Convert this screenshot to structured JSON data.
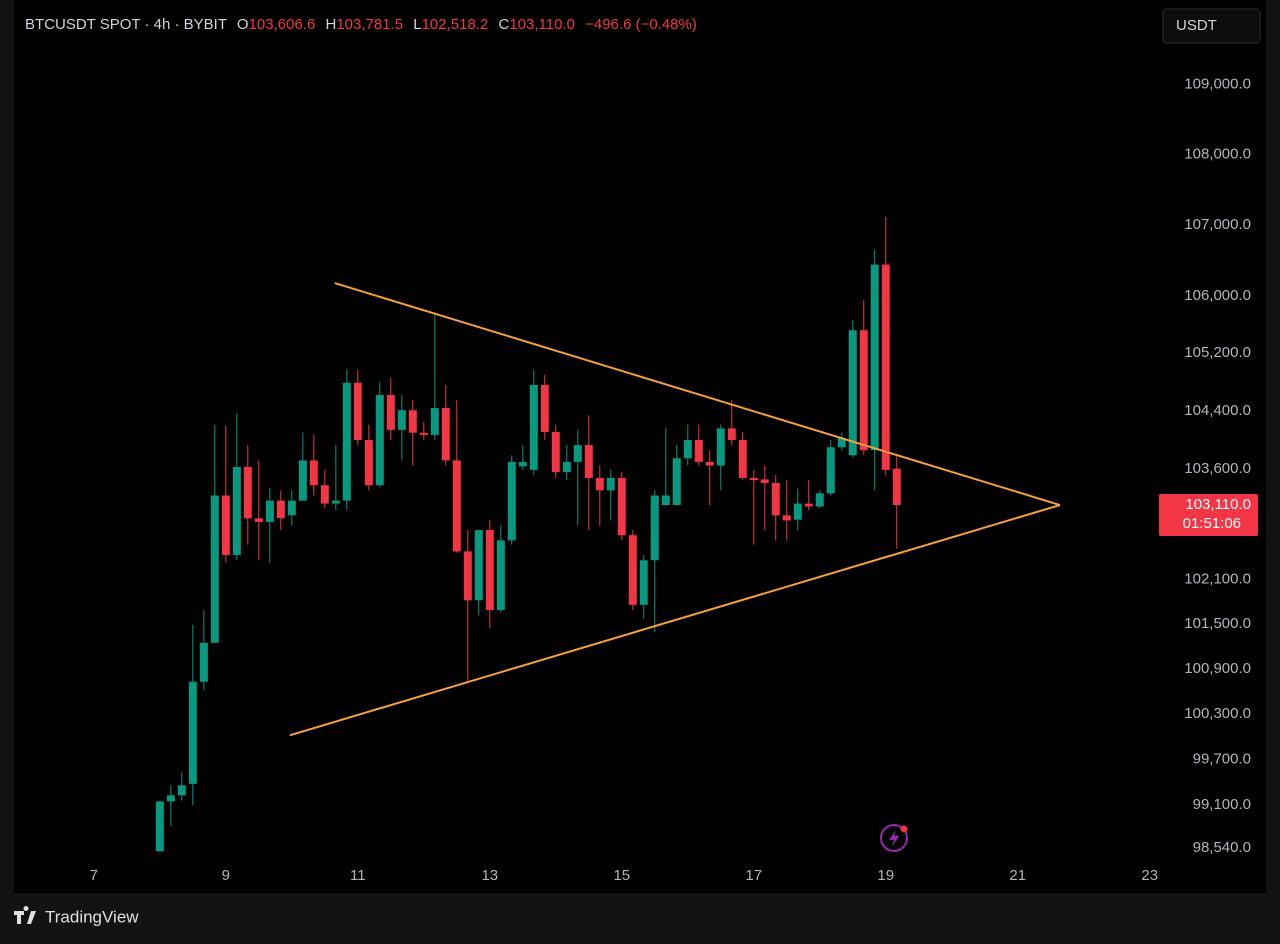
{
  "chart_data": {
    "type": "candlestick",
    "header": {
      "symbol": "BTCUSDT SPOT · 4h · BYBIT",
      "open_label": "O",
      "open": "103,606.6",
      "high_label": "H",
      "high": "103,781.5",
      "low_label": "L",
      "low": "102,518.2",
      "close_label": "C",
      "close": "103,110.0",
      "change": "−496.6 (−0.48%)"
    },
    "currency": "USDT",
    "up_color": "#089981",
    "down_color": "#f23645",
    "x": [
      8,
      8.167,
      8.333,
      8.5,
      8.667,
      8.833,
      9,
      9.167,
      9.333,
      9.5,
      9.667,
      9.833,
      10,
      10.167,
      10.333,
      10.5,
      10.667,
      10.833,
      11,
      11.167,
      11.333,
      11.5,
      11.667,
      11.833,
      12,
      12.167,
      12.333,
      12.5,
      12.667,
      12.833,
      13,
      13.167,
      13.333,
      13.5,
      13.667,
      13.833,
      14,
      14.167,
      14.333,
      14.5,
      14.667,
      14.833,
      15,
      15.167,
      15.333,
      15.5,
      15.667,
      15.833,
      16,
      16.167,
      16.333,
      16.5,
      16.667,
      16.833,
      17,
      17.167,
      17.333,
      17.5,
      17.667,
      17.833,
      18,
      18.167,
      18.333,
      18.5,
      18.667,
      18.833,
      19,
      19.167
    ],
    "open": [
      98500,
      99150,
      99230,
      99380,
      100730,
      101250,
      103240,
      102430,
      103630,
      102930,
      102880,
      103170,
      102970,
      103170,
      103720,
      103380,
      103130,
      103170,
      104790,
      104000,
      103380,
      104620,
      104140,
      104410,
      104100,
      104070,
      104440,
      103720,
      102480,
      101820,
      102770,
      101690,
      102630,
      103640,
      103590,
      104760,
      104110,
      103560,
      103700,
      103930,
      103480,
      103310,
      103480,
      102700,
      101760,
      102360,
      103110,
      103110,
      103750,
      104000,
      103700,
      103650,
      104160,
      104000,
      103480,
      103460,
      103410,
      102970,
      102910,
      103130,
      103090,
      103270,
      103900,
      103790,
      105520,
      103860,
      106440,
      103606.6
    ],
    "high": [
      99160,
      99360,
      99530,
      101490,
      101690,
      104210,
      104200,
      104370,
      103930,
      103720,
      103340,
      103310,
      103310,
      104100,
      104070,
      103590,
      103930,
      104970,
      104970,
      104210,
      104800,
      104860,
      104620,
      104550,
      104250,
      105770,
      104760,
      104550,
      102770,
      102770,
      102910,
      102840,
      103790,
      103930,
      104970,
      104900,
      104210,
      103930,
      104140,
      104340,
      103650,
      103590,
      103560,
      102770,
      102430,
      103310,
      104160,
      103930,
      104210,
      104210,
      103860,
      104210,
      104550,
      104110,
      103590,
      103650,
      103520,
      103450,
      103340,
      103450,
      103310,
      104000,
      104100,
      105660,
      105940,
      106650,
      107110,
      103781.5
    ],
    "low": [
      98490,
      98830,
      99160,
      99100,
      100620,
      101250,
      102330,
      102360,
      102570,
      102360,
      102330,
      102770,
      102830,
      103170,
      103240,
      103070,
      103040,
      103040,
      103930,
      103310,
      103350,
      104000,
      103720,
      103650,
      104000,
      104000,
      103650,
      102460,
      100740,
      101620,
      101450,
      101660,
      102570,
      103590,
      103520,
      104000,
      103480,
      103450,
      102830,
      102770,
      102830,
      102900,
      102630,
      101690,
      101580,
      101390,
      103110,
      103110,
      103650,
      103650,
      103110,
      103310,
      103930,
      103450,
      102570,
      102770,
      102630,
      102630,
      102770,
      103040,
      103070,
      103240,
      103860,
      103760,
      103790,
      103310,
      103520,
      102518.2
    ],
    "close": [
      99150,
      99230,
      99360,
      100730,
      101250,
      103240,
      102430,
      103630,
      102930,
      102880,
      103170,
      102930,
      103170,
      103720,
      103380,
      103130,
      103170,
      104790,
      104000,
      103380,
      104620,
      104140,
      104410,
      104100,
      104070,
      104440,
      103720,
      102480,
      101820,
      102770,
      101690,
      102630,
      103700,
      103700,
      104760,
      104110,
      103560,
      103700,
      103930,
      103480,
      103310,
      103480,
      102700,
      101760,
      102360,
      103240,
      103240,
      103750,
      104000,
      103700,
      103650,
      104160,
      104000,
      103480,
      103450,
      103410,
      102970,
      102900,
      103130,
      103090,
      103270,
      103900,
      104030,
      105520,
      103860,
      106440,
      103590,
      103110
    ],
    "log_scale": true,
    "xlim": [
      5.79,
      23.08
    ],
    "xticks": [
      7,
      9,
      11,
      13,
      15,
      17,
      19,
      21,
      23
    ],
    "ylim": [
      98320,
      110110
    ],
    "yticks": [
      {
        "value": 109000,
        "label": "109,000.0"
      },
      {
        "value": 108000,
        "label": "108,000.0"
      },
      {
        "value": 107000,
        "label": "107,000.0"
      },
      {
        "value": 106000,
        "label": "106,000.0"
      },
      {
        "value": 105200,
        "label": "105,200.0"
      },
      {
        "value": 104400,
        "label": "104,400.0"
      },
      {
        "value": 103600,
        "label": "103,600.0"
      },
      {
        "value": 102100,
        "label": "102,100.0"
      },
      {
        "value": 101500,
        "label": "101,500.0"
      },
      {
        "value": 100900,
        "label": "100,900.0"
      },
      {
        "value": 100300,
        "label": "100,300.0"
      },
      {
        "value": 99700,
        "label": "99,700.0"
      },
      {
        "value": 99100,
        "label": "99,100.0"
      },
      {
        "value": 98540,
        "label": "98,540.0"
      }
    ],
    "price_label": {
      "value": 103110,
      "label": "103,110.0",
      "countdown": "01:51:06"
    },
    "trendlines": [
      {
        "x": [
          10.65,
          21.64
        ],
        "y": [
          106180,
          103110
        ],
        "color": "#f7a13c"
      },
      {
        "x": [
          9.97,
          21.64
        ],
        "y": [
          100020,
          103110
        ],
        "color": "#f7a13c"
      }
    ]
  },
  "footer": {
    "brand": "TradingView"
  }
}
